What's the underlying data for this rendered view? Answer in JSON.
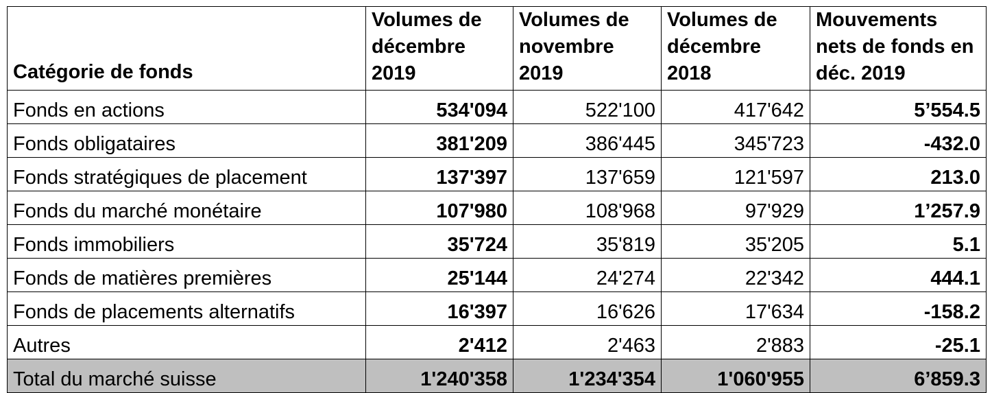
{
  "table": {
    "headers": [
      "Catégorie de fonds",
      "Volumes de décembre 2019",
      "Volumes de novembre 2019",
      "Volumes de décembre 2018",
      "Mouvements nets de fonds en déc. 2019"
    ],
    "rows": [
      {
        "category": "Fonds en actions",
        "dec2019": "534'094",
        "nov2019": "522'100",
        "dec2018": "417'642",
        "net": "5’554.5"
      },
      {
        "category": "Fonds obligataires",
        "dec2019": "381'209",
        "nov2019": "386'445",
        "dec2018": "345'723",
        "net": "-432.0"
      },
      {
        "category": "Fonds stratégiques de placement",
        "dec2019": "137'397",
        "nov2019": "137'659",
        "dec2018": "121'597",
        "net": "213.0"
      },
      {
        "category": "Fonds du marché monétaire",
        "dec2019": "107'980",
        "nov2019": "108'968",
        "dec2018": "97'929",
        "net": "1’257.9"
      },
      {
        "category": "Fonds immobiliers",
        "dec2019": "35'724",
        "nov2019": "35'819",
        "dec2018": "35'205",
        "net": "5.1"
      },
      {
        "category": "Fonds de matières premières",
        "dec2019": "25'144",
        "nov2019": "24'274",
        "dec2018": "22'342",
        "net": "444.1"
      },
      {
        "category": "Fonds de placements alternatifs",
        "dec2019": "16'397",
        "nov2019": "16'626",
        "dec2018": "17'634",
        "net": "-158.2"
      },
      {
        "category": "Autres",
        "dec2019": "2'412",
        "nov2019": "2'463",
        "dec2018": "2'883",
        "net": "-25.1"
      }
    ],
    "total": {
      "category": "Total du marché suisse",
      "dec2019": "1'240'358",
      "nov2019": "1'234'354",
      "dec2018": "1'060'955",
      "net": "6’859.3"
    },
    "total_fill_color": "#bfbfbf"
  }
}
